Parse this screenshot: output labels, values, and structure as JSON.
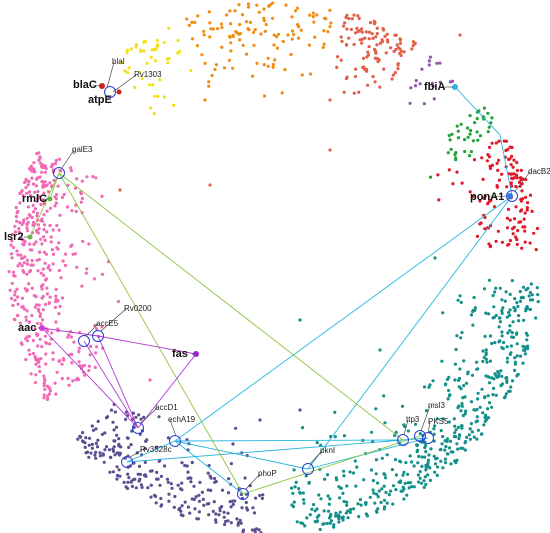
{
  "nodes": [
    {
      "label": "blaI"
    },
    {
      "label": "Rv1303"
    },
    {
      "label": "blaC"
    },
    {
      "label": "atpE"
    },
    {
      "label": "fbiA"
    },
    {
      "label": "galE3"
    },
    {
      "label": "rmlC"
    },
    {
      "label": "dacB2"
    },
    {
      "label": "ponA1"
    },
    {
      "label": "lsr2"
    },
    {
      "label": "Rv0200"
    },
    {
      "label": "accE5"
    },
    {
      "label": "aac"
    },
    {
      "label": "fas"
    },
    {
      "label": "accD1"
    },
    {
      "label": "echA19"
    },
    {
      "label": "Rv3528c"
    },
    {
      "label": "pknI"
    },
    {
      "label": "msl3"
    },
    {
      "label": "ttp3"
    },
    {
      "label": "PKS5"
    },
    {
      "label": "phoP"
    }
  ]
}
